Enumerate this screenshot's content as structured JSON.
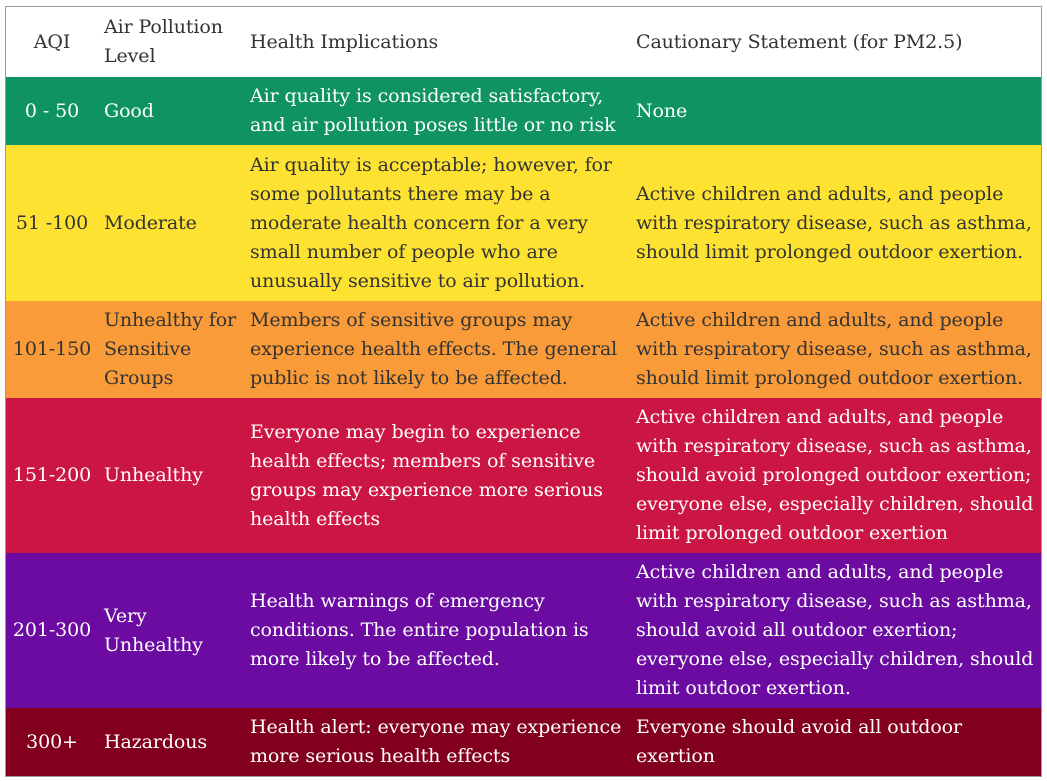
{
  "headers": {
    "aqi": "AQI",
    "level": "Air Pollution Level",
    "health": "Health Implications",
    "caution": "Cautionary Statement (for PM2.5)"
  },
  "rows": [
    {
      "aqi": "0 - 50",
      "level": "Good",
      "health": "Air quality is considered satisfactory, and air pollution poses little or no risk",
      "caution": "None",
      "color": "#109363"
    },
    {
      "aqi": "51 -100",
      "level": "Moderate",
      "health": "Air quality is acceptable; however, for some pollutants there may be a moderate health concern for a very small number of people who are unusually sensitive to air pollution.",
      "caution": "Active children and adults, and people with respiratory disease, such as asthma, should limit prolonged outdoor exertion.",
      "color": "#fde231"
    },
    {
      "aqi": "101-150",
      "level": "Unhealthy for Sensitive Groups",
      "health": "Members of sensitive groups may experience health effects. The general public is not likely to be affected.",
      "caution": "Active children and adults, and people with respiratory disease, such as asthma, should limit prolonged outdoor exertion.",
      "color": "#f99b38"
    },
    {
      "aqi": "151-200",
      "level": "Unhealthy",
      "health": "Everyone may begin to experience health effects; members of sensitive groups may experience more serious health effects",
      "caution": "Active children and adults, and people with respiratory disease, such as asthma, should avoid prolonged outdoor exertion; everyone else, especially children, should limit prolonged outdoor exertion",
      "color": "#cb1543"
    },
    {
      "aqi": "201-300",
      "level": "Very Unhealthy",
      "health": "Health warnings of emergency conditions. The entire population is more likely to be affected.",
      "caution": "Active children and adults, and people with respiratory disease, such as asthma, should avoid all outdoor exertion; everyone else, especially children, should limit outdoor exertion.",
      "color": "#6b0ba1"
    },
    {
      "aqi": "300+",
      "level": "Hazardous",
      "health": "Health alert: everyone may experience more serious health effects",
      "caution": "Everyone should avoid all outdoor exertion",
      "color": "#82001d"
    }
  ]
}
